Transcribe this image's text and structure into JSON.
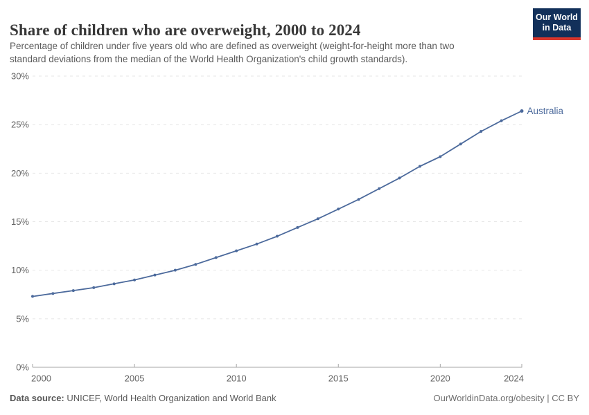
{
  "header": {
    "title": "Share of children who are overweight, 2000 to 2024",
    "subtitle_lines": [
      "Percentage of children under five years old who are defined as overweight (weight-for-height more than two",
      "standard deviations from the median of the World Health Organization's child growth standards)."
    ]
  },
  "logo": {
    "line1": "Our World",
    "line2": "in Data",
    "bg_color": "#12305A",
    "bar_color": "#D9362C"
  },
  "chart_data": {
    "type": "line",
    "title": "Share of children who are overweight, 2000 to 2024",
    "x": [
      2000,
      2001,
      2002,
      2003,
      2004,
      2005,
      2006,
      2007,
      2008,
      2009,
      2010,
      2011,
      2012,
      2013,
      2014,
      2015,
      2016,
      2017,
      2018,
      2019,
      2020,
      2021,
      2022,
      2023,
      2024
    ],
    "series": [
      {
        "name": "Australia",
        "color": "#4C6A9C",
        "values": [
          7.3,
          7.6,
          7.9,
          8.2,
          8.6,
          9.0,
          9.5,
          10.0,
          10.6,
          11.3,
          12.0,
          12.7,
          13.5,
          14.4,
          15.3,
          16.3,
          17.3,
          18.4,
          19.5,
          20.7,
          21.7,
          23.0,
          24.3,
          25.4,
          26.4
        ]
      }
    ],
    "xlabel": "",
    "ylabel": "",
    "ylim": [
      0,
      30
    ],
    "yticks": [
      0,
      5,
      10,
      15,
      20,
      25,
      30
    ],
    "ytick_suffix": "%",
    "xticks": [
      2000,
      2005,
      2010,
      2015,
      2020,
      2024
    ],
    "grid": "horizontal-dashed",
    "legend": "end-of-line-label",
    "colors": {
      "grid": "#E5E5E5",
      "axis": "#A6A6A6",
      "tick_label": "#636363"
    }
  },
  "footer": {
    "source_label": "Data source:",
    "source_text": " UNICEF, World Health Organization and World Bank",
    "rights": "OurWorldinData.org/obesity | CC BY"
  }
}
